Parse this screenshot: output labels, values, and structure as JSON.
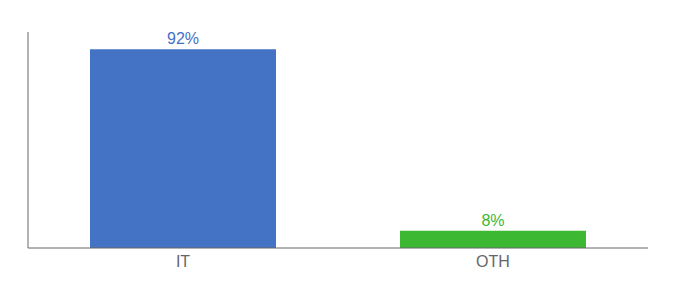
{
  "chart_data": {
    "type": "bar",
    "categories": [
      "IT",
      "OTH"
    ],
    "values": [
      92,
      8
    ],
    "value_labels": [
      "92%",
      "8%"
    ],
    "colors": [
      "#4472c4",
      "#3cb832"
    ],
    "ylim": [
      0,
      100
    ],
    "data_labels": true,
    "tick_labels": "x"
  }
}
